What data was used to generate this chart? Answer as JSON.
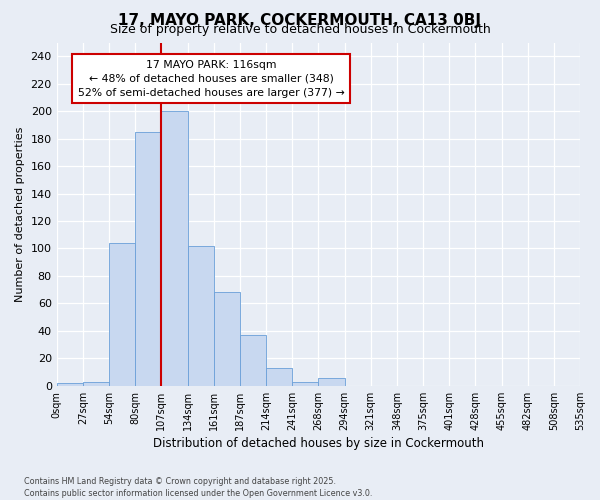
{
  "title": "17, MAYO PARK, COCKERMOUTH, CA13 0BJ",
  "subtitle": "Size of property relative to detached houses in Cockermouth",
  "xlabel": "Distribution of detached houses by size in Cockermouth",
  "ylabel": "Number of detached properties",
  "bar_values": [
    2,
    3,
    104,
    185,
    200,
    102,
    68,
    37,
    13,
    3,
    6,
    0,
    0,
    0,
    0,
    0,
    0,
    0,
    0,
    0
  ],
  "bin_labels": [
    "0sqm",
    "27sqm",
    "54sqm",
    "80sqm",
    "107sqm",
    "134sqm",
    "161sqm",
    "187sqm",
    "214sqm",
    "241sqm",
    "268sqm",
    "294sqm",
    "321sqm",
    "348sqm",
    "375sqm",
    "401sqm",
    "428sqm",
    "455sqm",
    "482sqm",
    "508sqm",
    "535sqm"
  ],
  "bar_color": "#c8d8f0",
  "bar_edge_color": "#6a9fd8",
  "vline_x": 4.0,
  "vline_color": "#cc0000",
  "annotation_text": "17 MAYO PARK: 116sqm\n← 48% of detached houses are smaller (348)\n52% of semi-detached houses are larger (377) →",
  "annotation_box_facecolor": "#ffffff",
  "annotation_box_edgecolor": "#cc0000",
  "ylim": [
    0,
    250
  ],
  "yticks": [
    0,
    20,
    40,
    60,
    80,
    100,
    120,
    140,
    160,
    180,
    200,
    220,
    240
  ],
  "bg_color": "#e8edf5",
  "grid_color": "#ffffff",
  "footer_line1": "Contains HM Land Registry data © Crown copyright and database right 2025.",
  "footer_line2": "Contains public sector information licensed under the Open Government Licence v3.0."
}
